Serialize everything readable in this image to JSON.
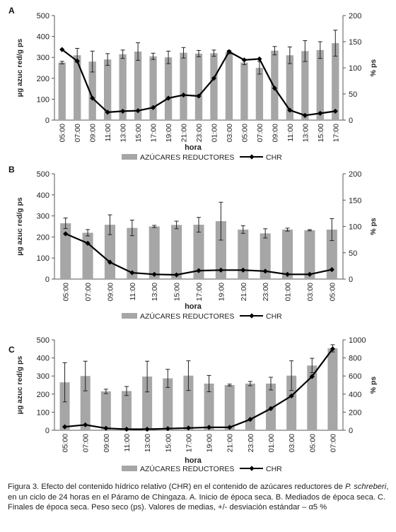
{
  "chart_data": [
    {
      "type": "bar",
      "panel_label": "A",
      "categories": [
        "05:00",
        "07:00",
        "09:00",
        "11:00",
        "13:00",
        "15:00",
        "17:00",
        "19:00",
        "21:00",
        "23:00",
        "01:00",
        "03:00",
        "05:00",
        "07:00",
        "09:00",
        "11:00",
        "13:00",
        "15:00",
        "17:00"
      ],
      "series": [
        {
          "name": "AZÚCARES REDUCTORES",
          "type": "bar",
          "axis": "left",
          "color": "#a6a6a6",
          "values": [
            275,
            310,
            280,
            290,
            315,
            328,
            305,
            300,
            322,
            318,
            320,
            325,
            275,
            250,
            332,
            310,
            330,
            335,
            368
          ],
          "error": [
            6,
            33,
            50,
            28,
            20,
            42,
            15,
            30,
            25,
            15,
            15,
            8,
            10,
            30,
            20,
            40,
            50,
            40,
            62
          ]
        },
        {
          "name": "CHR",
          "type": "line",
          "axis": "right",
          "color": "#000000",
          "values": [
            135,
            113,
            42,
            15,
            17,
            18,
            24,
            42,
            48,
            46,
            80,
            131,
            115,
            117,
            61,
            19,
            9,
            13,
            17
          ]
        }
      ],
      "ylabel": "µg azuc red/g ps",
      "y2label": "% ps",
      "xlabel": "hora",
      "ylim": [
        0,
        500
      ],
      "yticks": [
        0,
        100,
        200,
        300,
        400,
        500
      ],
      "y2lim": [
        0,
        200
      ],
      "y2ticks": [
        0,
        50,
        100,
        150,
        200
      ],
      "legend": {
        "bar": "AZÚCARES REDUCTORES",
        "line": "CHR"
      }
    },
    {
      "type": "bar",
      "panel_label": "B",
      "categories": [
        "05:00",
        "07:00",
        "09:00",
        "11:00",
        "13:00",
        "15:00",
        "17:00",
        "19:00",
        "21:00",
        "23:00",
        "01:00",
        "03:00",
        "05:00"
      ],
      "series": [
        {
          "name": "AZÚCARES REDUCTORES",
          "type": "bar",
          "axis": "left",
          "color": "#a6a6a6",
          "values": [
            265,
            220,
            258,
            243,
            250,
            257,
            258,
            275,
            235,
            217,
            235,
            232,
            235
          ],
          "error": [
            25,
            15,
            47,
            37,
            5,
            18,
            35,
            90,
            18,
            22,
            7,
            3,
            52
          ]
        },
        {
          "name": "CHR",
          "type": "line",
          "axis": "right",
          "color": "#000000",
          "values": [
            86,
            68,
            32,
            12,
            9,
            8,
            16,
            17,
            17,
            15,
            9,
            9,
            18
          ]
        }
      ],
      "ylabel": "µg azuc red/g ps",
      "y2label": "% ps",
      "xlabel": "hora",
      "ylim": [
        0,
        500
      ],
      "yticks": [
        0,
        100,
        200,
        300,
        400,
        500
      ],
      "y2lim": [
        0,
        200
      ],
      "y2ticks": [
        0,
        50,
        100,
        150,
        200
      ],
      "legend": {
        "bar": "AZÚCARES REDUCTORES",
        "line": "CHR"
      }
    },
    {
      "type": "bar",
      "panel_label": "C",
      "categories": [
        "05:00",
        "07:00",
        "09:00",
        "11:00",
        "13:00",
        "15:00",
        "17:00",
        "19:00",
        "21:00",
        "23:00",
        "01:00",
        "03:00",
        "05:00",
        "07:00"
      ],
      "series": [
        {
          "name": "AZÚCARES REDUCTORES",
          "type": "bar",
          "axis": "left",
          "color": "#a6a6a6",
          "values": [
            265,
            300,
            215,
            217,
            297,
            287,
            302,
            258,
            250,
            258,
            258,
            302,
            358,
            453
          ],
          "error": [
            108,
            82,
            12,
            25,
            85,
            50,
            82,
            45,
            5,
            12,
            35,
            82,
            40,
            20
          ]
        },
        {
          "name": "CHR",
          "type": "line",
          "axis": "right",
          "color": "#000000",
          "values": [
            38,
            60,
            22,
            12,
            12,
            18,
            25,
            32,
            32,
            120,
            240,
            380,
            595,
            900
          ]
        }
      ],
      "ylabel": "µg azuc red/g ps",
      "y2label": "% ps",
      "xlabel": "hora",
      "ylim": [
        0,
        500
      ],
      "yticks": [
        0,
        100,
        200,
        300,
        400,
        500
      ],
      "y2lim": [
        0,
        1000
      ],
      "y2ticks": [
        0,
        200,
        400,
        600,
        800,
        1000
      ],
      "legend": {
        "bar": "AZÚCARES REDUCTORES",
        "line": "CHR"
      }
    }
  ],
  "caption": {
    "part1": "Figura 3. Efecto del contenido hídrico relativo (CHR) en el contenido de azúcares reductores de ",
    "species": "P. schreberi",
    "part2": ", en un ciclo de 24 horas en el Páramo de Chingaza. A. Inicio de época seca. B. Mediados de época seca. C. Finales de época seca. Peso seco (ps). Valores de medias, +/- desviación estándar – α5 %"
  }
}
